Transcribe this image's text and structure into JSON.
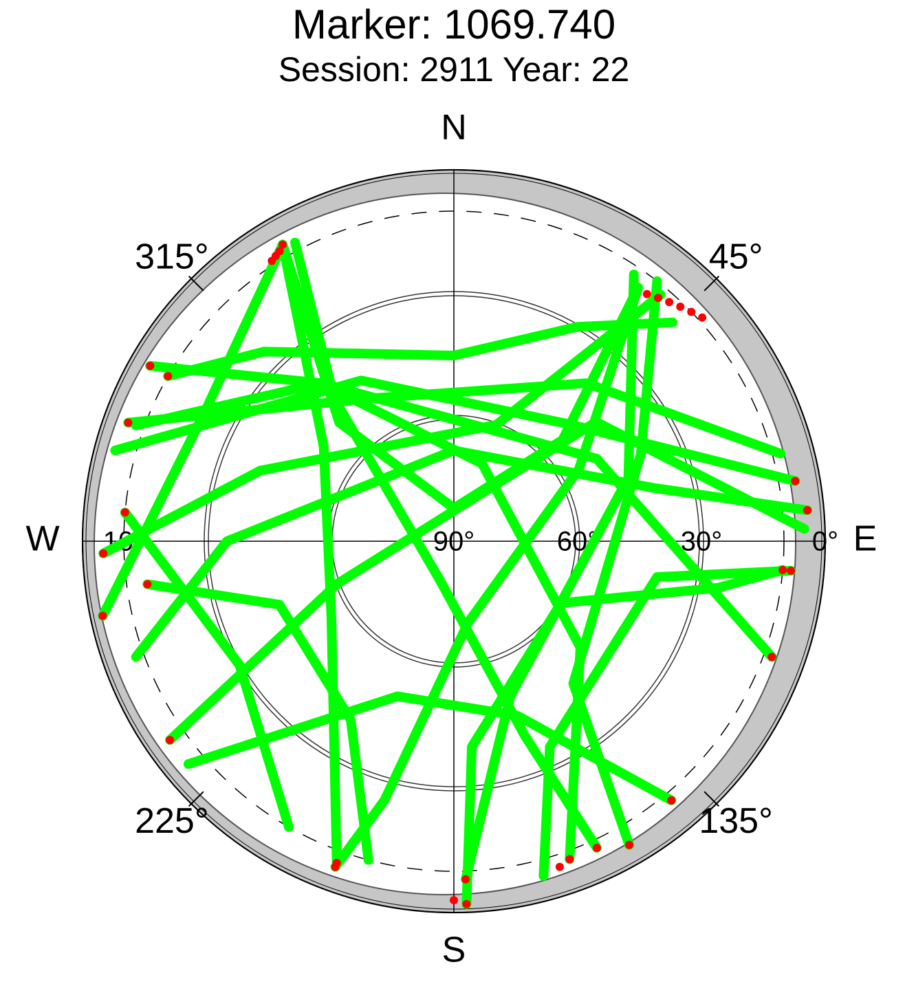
{
  "chart_data": {
    "type": "skyplot",
    "title": "Marker: 1069.740",
    "subtitle": "Session: 2911 Year: 22",
    "rlim": [
      90,
      0
    ],
    "rticks": [
      {
        "value": 0,
        "label": "0°"
      },
      {
        "value": 30,
        "label": "30°"
      },
      {
        "value": 60,
        "label": "60°"
      },
      {
        "value": 90,
        "label": "90°"
      }
    ],
    "mask": {
      "value": 10,
      "label": "10°"
    },
    "azticks": [
      {
        "value": 45,
        "label": "45°"
      },
      {
        "value": 135,
        "label": "135°"
      },
      {
        "value": 225,
        "label": "225°"
      },
      {
        "value": 315,
        "label": "315°"
      }
    ],
    "directions": [
      {
        "value": 0,
        "label": "N"
      },
      {
        "value": 90,
        "label": "E"
      },
      {
        "value": 180,
        "label": "S"
      },
      {
        "value": 270,
        "label": "W"
      }
    ],
    "track_color": "#00ff00",
    "tracks": [
      {
        "az": [
          330,
          306,
          238,
          200
        ],
        "el": [
          7,
          51,
          55,
          7
        ]
      },
      {
        "az": [
          330,
          297,
          258
        ],
        "el": [
          7,
          22,
          3
        ]
      },
      {
        "az": [
          330,
          316,
          0,
          47,
          36
        ],
        "el": [
          7,
          50,
          82,
          54,
          14
        ]
      },
      {
        "az": [
          332,
          320,
          200,
          160,
          155
        ],
        "el": [
          8,
          45,
          80,
          40,
          8
        ]
      },
      {
        "az": [
          36,
          60,
          170,
          195,
          200
        ],
        "el": [
          14,
          55,
          70,
          25,
          6
        ]
      },
      {
        "az": [
          34,
          70,
          160,
          178
        ],
        "el": [
          12,
          45,
          50,
          8
        ]
      },
      {
        "az": [
          40,
          20,
          290,
          268
        ],
        "el": [
          12,
          60,
          40,
          5
        ]
      },
      {
        "az": [
          38,
          65,
          140,
          150
        ],
        "el": [
          10,
          40,
          45,
          5
        ]
      },
      {
        "az": [
          75,
          40,
          330,
          290
        ],
        "el": [
          8,
          40,
          50,
          6
        ]
      },
      {
        "az": [
          88,
          50,
          250,
          235
        ],
        "el": [
          5,
          45,
          60,
          6
        ]
      },
      {
        "az": [
          290,
          320,
          60,
          110
        ],
        "el": [
          8,
          40,
          50,
          8
        ]
      },
      {
        "az": [
          285,
          330,
          45,
          80
        ],
        "el": [
          5,
          45,
          50,
          6
        ]
      },
      {
        "az": [
          230,
          200,
          160,
          140
        ],
        "el": [
          6,
          50,
          45,
          8
        ]
      },
      {
        "az": [
          178,
          175,
          120,
          100,
          95
        ],
        "el": [
          2,
          40,
          60,
          25,
          10
        ]
      },
      {
        "az": [
          250,
          270,
          0,
          75,
          85
        ],
        "el": [
          8,
          35,
          68,
          40,
          4
        ]
      },
      {
        "az": [
          210,
          240,
          275
        ],
        "el": [
          10,
          30,
          10
        ]
      },
      {
        "az": [
          160,
          130,
          20,
          320,
          300
        ],
        "el": [
          8,
          50,
          70,
          40,
          5
        ]
      },
      {
        "az": [
          195,
          210,
          250,
          262
        ],
        "el": [
          10,
          40,
          45,
          15
        ]
      },
      {
        "az": [
          165,
          155,
          100,
          95
        ],
        "el": [
          6,
          35,
          40,
          8
        ]
      },
      {
        "az": [
          45,
          30,
          0,
          315,
          300
        ],
        "el": [
          15,
          30,
          45,
          25,
          10
        ]
      }
    ],
    "flag_color": "#ff0000",
    "flagged": {
      "az": [
        330,
        329,
        328,
        327,
        38,
        40,
        42,
        44,
        46,
        48,
        200,
        258,
        155,
        200,
        178,
        268,
        150,
        290,
        235,
        110,
        80,
        140,
        95,
        85,
        275,
        300,
        262,
        95,
        300,
        200,
        178,
        180,
        160,
        162
      ],
      "el": [
        7,
        8,
        8.5,
        9,
        14,
        13,
        12,
        11,
        10,
        9,
        7,
        3,
        8,
        6,
        8,
        5,
        5,
        6,
        6,
        8,
        6,
        8,
        10,
        4,
        10,
        5,
        15,
        8,
        10,
        7,
        2,
        3,
        8,
        7
      ]
    }
  }
}
